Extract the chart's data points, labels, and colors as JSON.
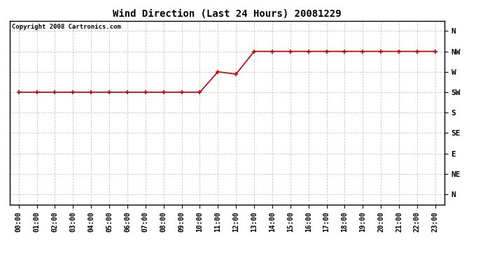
{
  "title": "Wind Direction (Last 24 Hours) 20081229",
  "copyright": "Copyright 2008 Cartronics.com",
  "background_color": "#ffffff",
  "plot_bg_color": "#ffffff",
  "grid_color": "#c8c8c8",
  "line_color": "#cc0000",
  "marker_color": "#cc0000",
  "hours": [
    0,
    1,
    2,
    3,
    4,
    5,
    6,
    7,
    8,
    9,
    10,
    11,
    12,
    13,
    14,
    15,
    16,
    17,
    18,
    19,
    20,
    21,
    22,
    23
  ],
  "x_labels": [
    "00:00",
    "01:00",
    "02:00",
    "03:00",
    "04:00",
    "05:00",
    "06:00",
    "07:00",
    "08:00",
    "09:00",
    "10:00",
    "11:00",
    "12:00",
    "13:00",
    "14:00",
    "15:00",
    "16:00",
    "17:00",
    "18:00",
    "19:00",
    "20:00",
    "21:00",
    "22:00",
    "23:00"
  ],
  "values": [
    225,
    225,
    225,
    225,
    225,
    225,
    225,
    225,
    225,
    225,
    225,
    270,
    265,
    315,
    315,
    315,
    315,
    315,
    315,
    315,
    315,
    315,
    315,
    315
  ],
  "yticks": [
    360,
    315,
    270,
    225,
    180,
    135,
    90,
    45,
    0
  ],
  "ylabels": [
    "N",
    "NW",
    "W",
    "SW",
    "S",
    "SE",
    "E",
    "NE",
    "N"
  ],
  "ymin": -22,
  "ymax": 382,
  "title_fontsize": 10,
  "tick_fontsize": 7,
  "ytick_fontsize": 8
}
